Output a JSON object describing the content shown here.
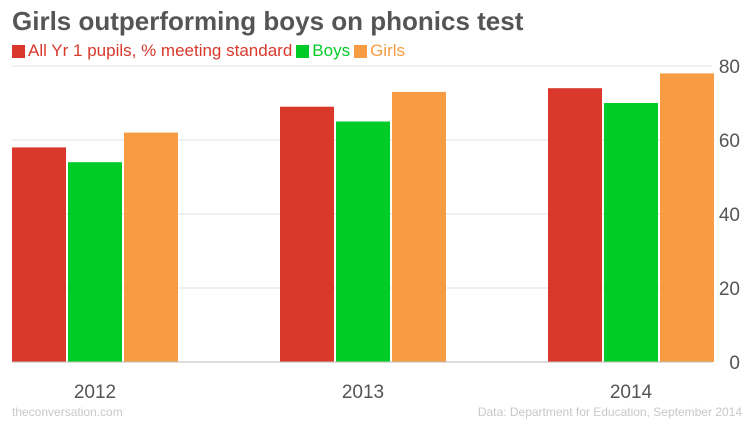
{
  "chart_data": {
    "type": "bar",
    "title": "Girls outperforming boys on phonics test",
    "categories": [
      "2012",
      "2013",
      "2014"
    ],
    "series": [
      {
        "name": "All Yr 1 pupils, % meeting standard",
        "values": [
          58,
          69,
          74
        ],
        "color": "#d9382b"
      },
      {
        "name": "Boys",
        "values": [
          54,
          65,
          70
        ],
        "color": "#00cc28"
      },
      {
        "name": "Girls",
        "values": [
          62,
          73,
          78
        ],
        "color": "#f79c42"
      }
    ],
    "ylim": [
      0,
      80
    ],
    "yticks": [
      0,
      20,
      40,
      60,
      80
    ],
    "y_axis_side": "right",
    "grid": true,
    "legend_position": "top-left"
  },
  "footer": {
    "source_site": "theconversation.com",
    "data_credit": "Data: Department for Education, September 2014"
  }
}
